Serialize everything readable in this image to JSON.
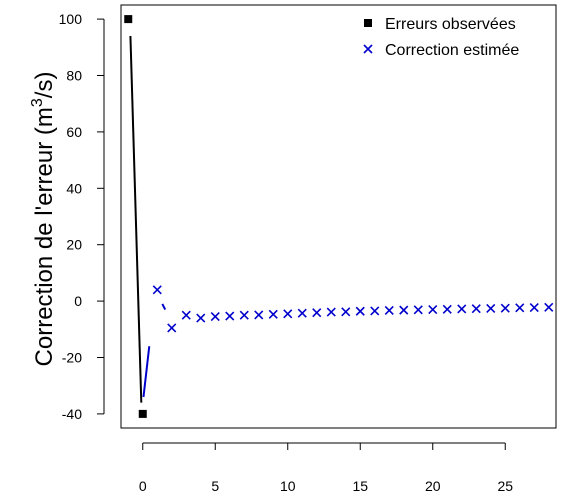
{
  "chart_data": {
    "type": "line",
    "ylabel_main": "Correction de l'erreur (m",
    "ylabel_sup": "3",
    "ylabel_end": "/s)",
    "xlim": [
      -1.5,
      28.5
    ],
    "ylim": [
      -45,
      105
    ],
    "x_ticks": [
      0,
      5,
      10,
      15,
      20,
      25
    ],
    "x_tick_labels": [
      "0",
      "5",
      "10",
      "15",
      "20",
      "25"
    ],
    "y_ticks": [
      -40,
      -20,
      0,
      20,
      40,
      60,
      80,
      100
    ],
    "y_tick_labels": [
      "-40",
      "-20",
      "0",
      "20",
      "40",
      "60",
      "80",
      "100"
    ],
    "legend_position": "top-right",
    "series": [
      {
        "name": "Erreurs observées",
        "marker": "square",
        "color": "#000000",
        "x": [
          -1,
          0
        ],
        "y": [
          100,
          -40
        ]
      },
      {
        "name": "Correction estimée",
        "marker": "x",
        "color": "#0000cc",
        "x": [
          1,
          2,
          3,
          4,
          5,
          6,
          7,
          8,
          9,
          10,
          11,
          12,
          13,
          14,
          15,
          16,
          17,
          18,
          19,
          20,
          21,
          22,
          23,
          24,
          25,
          26,
          27,
          28
        ],
        "y": [
          4,
          -9.5,
          -5,
          -6,
          -5.5,
          -5.3,
          -5,
          -4.9,
          -4.7,
          -4.5,
          -4.3,
          -4.1,
          -3.9,
          -3.8,
          -3.6,
          -3.5,
          -3.3,
          -3.2,
          -3.1,
          -3,
          -2.9,
          -2.8,
          -2.7,
          -2.6,
          -2.5,
          -2.4,
          -2.3,
          -2.2
        ]
      }
    ],
    "lines": [
      {
        "color": "#000000",
        "x": [
          -0.85,
          -0.1
        ],
        "y": [
          94,
          -36
        ]
      },
      {
        "color": "#0000cc",
        "x": [
          0.05,
          0.45
        ],
        "y": [
          -34,
          -16
        ]
      },
      {
        "color": "#0000cc",
        "x": [
          1.35,
          1.55
        ],
        "y": [
          -1,
          -3
        ]
      }
    ]
  }
}
